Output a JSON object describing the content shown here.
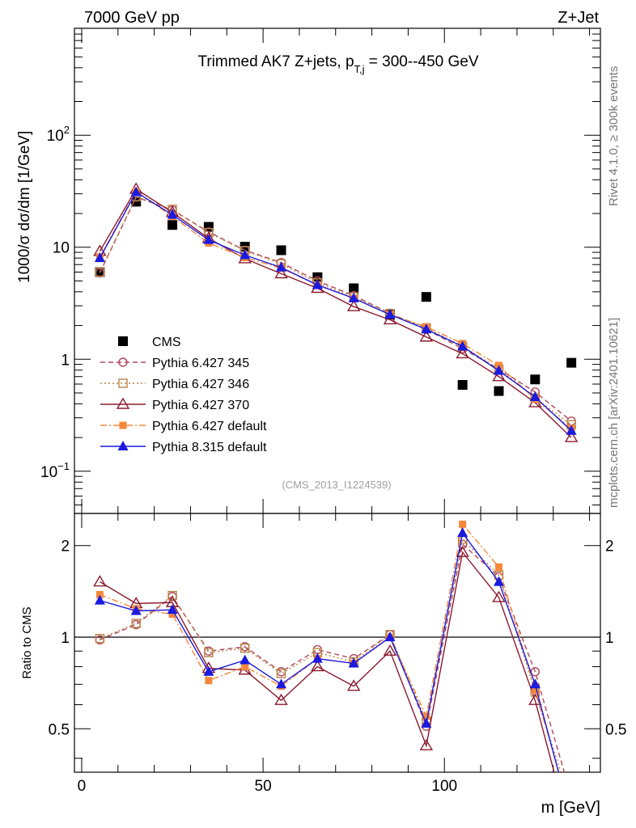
{
  "header": {
    "left": "7000 GeV pp",
    "right": "Z+Jet"
  },
  "side_text": {
    "rivet": "Rivet 4.1.0, ≥ 300k events",
    "mcplots": "mcplots.cern.ch [arXiv:2401.10621]"
  },
  "analysis_id": "(CMS_2013_I1224539)",
  "colors": {
    "cms": "#000000",
    "p345": "#b0485a",
    "p346": "#b8864a",
    "p370": "#8b1a2e",
    "p6def": "#f5883a",
    "p8": "#1a1ae0"
  },
  "chart_data": [
    {
      "type": "line",
      "name": "main",
      "title_main": "Trimmed AK7 Z+jets, p",
      "title_sub": "T,j",
      "title_tail": " = 300--450 GeV",
      "ylabel": "1000/σ  dσ/dm [1/GeV]",
      "yscale": "log",
      "ylim": [
        0.042,
        900
      ],
      "xlim": [
        -2,
        143
      ],
      "yticks": [
        {
          "label": "10",
          "sup": "−1",
          "value": 0.1
        },
        {
          "label": "1",
          "sup": "",
          "value": 1
        },
        {
          "label": "10",
          "sup": "",
          "value": 10
        },
        {
          "label": "10",
          "sup": "2",
          "value": 100
        }
      ],
      "x": [
        5,
        15,
        25,
        35,
        45,
        55,
        65,
        75,
        85,
        95,
        105,
        115,
        125,
        135
      ],
      "series": [
        {
          "name": "CMS",
          "key": "cms",
          "marker": "square-filled",
          "line": "none",
          "values": [
            6.0,
            25.5,
            15.8,
            15.2,
            10.1,
            9.4,
            5.4,
            4.3,
            2.5,
            3.6,
            0.59,
            0.52,
            0.66,
            0.93
          ]
        },
        {
          "name": "Pythia 6.427 345",
          "key": "p345",
          "marker": "circle-open",
          "line": "dashed",
          "values": [
            5.9,
            28.0,
            21.5,
            13.7,
            9.4,
            7.3,
            5.0,
            3.7,
            2.57,
            1.85,
            1.24,
            0.82,
            0.51,
            0.28
          ]
        },
        {
          "name": "Pythia 6.427 346",
          "key": "p346",
          "marker": "square-open",
          "line": "dotted",
          "values": [
            6.0,
            28.3,
            21.8,
            13.5,
            9.3,
            7.1,
            4.8,
            3.6,
            2.56,
            1.9,
            1.3,
            0.82,
            0.45,
            0.26
          ]
        },
        {
          "name": "Pythia 6.427 370",
          "key": "p370",
          "marker": "triangle-open",
          "line": "solid",
          "values": [
            9.2,
            33.0,
            20.5,
            12.0,
            7.9,
            5.8,
            4.3,
            2.95,
            2.25,
            1.58,
            1.12,
            0.7,
            0.41,
            0.2
          ]
        },
        {
          "name": "Pythia 6.427 default",
          "key": "p6def",
          "marker": "square-filled-small",
          "line": "dashdot",
          "values": [
            8.2,
            31.5,
            18.8,
            10.9,
            8.1,
            6.5,
            4.6,
            3.5,
            2.5,
            1.95,
            1.38,
            0.88,
            0.44,
            0.24
          ]
        },
        {
          "name": "Pythia 8.315 default",
          "key": "p8",
          "marker": "triangle-filled",
          "line": "solid",
          "values": [
            8.0,
            31.0,
            19.5,
            11.6,
            8.5,
            6.6,
            4.6,
            3.5,
            2.5,
            1.85,
            1.3,
            0.79,
            0.46,
            0.23
          ]
        }
      ]
    },
    {
      "type": "line",
      "name": "ratio",
      "ylabel": "Ratio to CMS",
      "xlabel": "m [GeV]",
      "yscale": "log",
      "ylim": [
        0.36,
        2.55
      ],
      "xlim": [
        -2,
        143
      ],
      "yticks": [
        {
          "label": "0.5",
          "value": 0.5
        },
        {
          "label": "1",
          "value": 1
        },
        {
          "label": "2",
          "value": 2
        }
      ],
      "xticks": [
        {
          "label": "0",
          "value": 0
        },
        {
          "label": "50",
          "value": 50
        },
        {
          "label": "100",
          "value": 100
        }
      ],
      "x": [
        5,
        15,
        25,
        35,
        45,
        55,
        65,
        75,
        85,
        95,
        105,
        115,
        125,
        135
      ],
      "series": [
        {
          "name": "Pythia 6.427 345",
          "key": "p345",
          "values": [
            0.98,
            1.1,
            1.36,
            0.9,
            0.93,
            0.77,
            0.91,
            0.85,
            1.02,
            0.51,
            2.02,
            1.58,
            0.77,
            0.3
          ]
        },
        {
          "name": "Pythia 6.427 346",
          "key": "p346",
          "values": [
            0.99,
            1.11,
            1.37,
            0.89,
            0.92,
            0.76,
            0.89,
            0.83,
            1.02,
            0.53,
            2.1,
            1.6,
            0.66,
            0.28
          ]
        },
        {
          "name": "Pythia 6.427 370",
          "key": "p370",
          "values": [
            1.52,
            1.29,
            1.3,
            0.79,
            0.78,
            0.62,
            0.8,
            0.69,
            0.9,
            0.44,
            1.9,
            1.35,
            0.62,
            0.22
          ]
        },
        {
          "name": "Pythia 6.427 default",
          "key": "p6def",
          "values": [
            1.38,
            1.24,
            1.19,
            0.72,
            0.8,
            0.69,
            0.85,
            0.82,
            1.0,
            0.55,
            2.35,
            1.7,
            0.67,
            0.26
          ]
        },
        {
          "name": "Pythia 8.315 default",
          "key": "p8",
          "values": [
            1.32,
            1.22,
            1.23,
            0.77,
            0.84,
            0.7,
            0.85,
            0.82,
            1.0,
            0.52,
            2.2,
            1.52,
            0.7,
            0.25
          ]
        }
      ]
    }
  ]
}
